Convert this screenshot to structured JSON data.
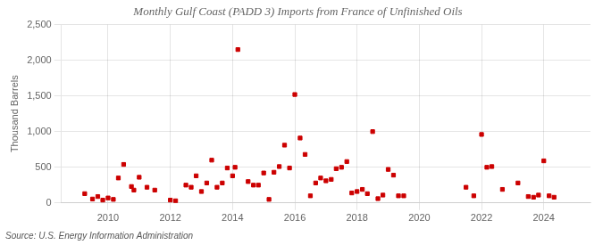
{
  "chart_data": {
    "type": "scatter",
    "title": "Monthly Gulf Coast (PADD 3) Imports from France of Unfinished Oils",
    "ylabel": "Thousand Barrels",
    "annotations": [
      "Source: U.S. Energy Information Administration"
    ],
    "color": "#cc0000",
    "marker": "square",
    "grid": true,
    "xlim": [
      2008.5,
      2025.5
    ],
    "xticks": [
      2010,
      2012,
      2014,
      2016,
      2018,
      2020,
      2022,
      2024
    ],
    "ylim": [
      0,
      2500
    ],
    "yticks": [
      0,
      500,
      {
        "value": 1000,
        "label": "1,000"
      },
      {
        "value": 1500,
        "label": "1,500"
      },
      {
        "value": 2000,
        "label": "2,000"
      },
      {
        "value": 2500,
        "label": "2,500"
      }
    ],
    "x": [
      2009.25,
      2009.5,
      2009.67,
      2009.83,
      2010.0,
      2010.17,
      2010.33,
      2010.5,
      2010.75,
      2010.83,
      2011.0,
      2011.25,
      2011.5,
      2012.0,
      2012.17,
      2012.5,
      2012.67,
      2012.83,
      2013.0,
      2013.17,
      2013.33,
      2013.5,
      2013.67,
      2013.83,
      2014.0,
      2014.08,
      2014.17,
      2014.5,
      2014.67,
      2014.83,
      2015.0,
      2015.17,
      2015.33,
      2015.5,
      2015.67,
      2015.83,
      2016.0,
      2016.17,
      2016.33,
      2016.5,
      2016.67,
      2016.83,
      2017.0,
      2017.17,
      2017.33,
      2017.5,
      2017.67,
      2017.83,
      2018.0,
      2018.17,
      2018.33,
      2018.5,
      2018.67,
      2018.83,
      2019.0,
      2019.17,
      2019.33,
      2019.5,
      2021.5,
      2021.75,
      2022.0,
      2022.17,
      2022.33,
      2022.67,
      2023.17,
      2023.5,
      2023.67,
      2023.83,
      2024.0,
      2024.17,
      2024.33
    ],
    "values": [
      130,
      55,
      90,
      40,
      70,
      50,
      350,
      540,
      230,
      180,
      360,
      220,
      180,
      40,
      30,
      250,
      220,
      380,
      160,
      280,
      600,
      220,
      280,
      490,
      380,
      500,
      2150,
      300,
      250,
      250,
      420,
      50,
      430,
      510,
      810,
      490,
      1520,
      910,
      680,
      100,
      280,
      350,
      310,
      330,
      480,
      500,
      580,
      140,
      160,
      190,
      130,
      1000,
      60,
      110,
      470,
      390,
      100,
      100,
      220,
      100,
      960,
      500,
      510,
      190,
      280,
      90,
      80,
      110,
      590,
      100,
      80
    ]
  }
}
